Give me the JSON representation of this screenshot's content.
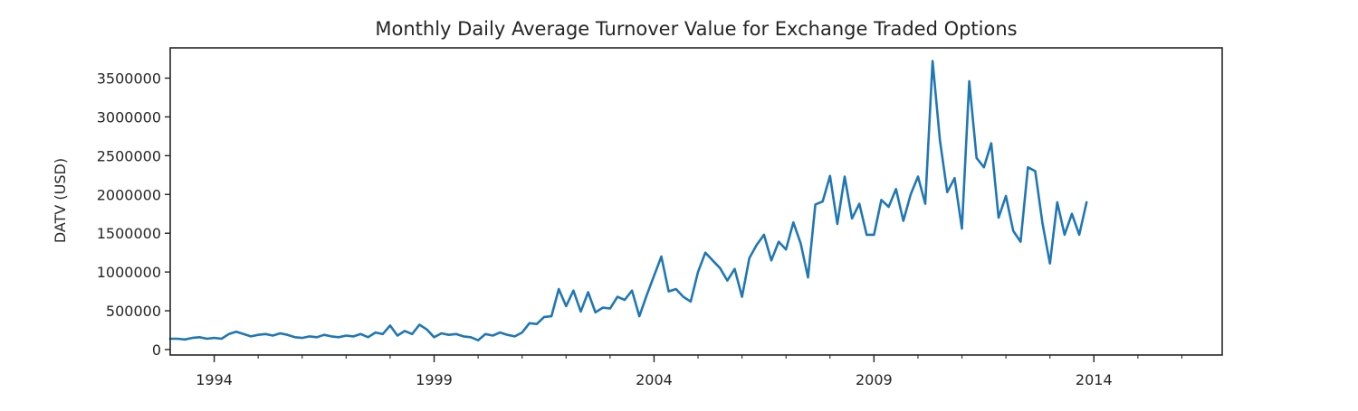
{
  "chart_data": {
    "type": "line",
    "title": "Monthly Daily Average Turnover Value for Exchange Traded Options",
    "xlabel": "",
    "ylabel": "DATV (USD)",
    "x_start": "1993-01",
    "x_end": "2016-12",
    "xlim": [
      "1993-01",
      "2016-12"
    ],
    "ylim": [
      -70000,
      3890000
    ],
    "y_ticks": [
      0,
      500000,
      1000000,
      1500000,
      2000000,
      2500000,
      3000000,
      3500000
    ],
    "y_tick_labels": [
      "0",
      "500000",
      "1000000",
      "1500000",
      "2000000",
      "2500000",
      "3000000",
      "3500000"
    ],
    "x_ticks": [
      "1994",
      "1999",
      "2004",
      "2009",
      "2014"
    ],
    "x_tick_labels": [
      "1994",
      "1999",
      "2004",
      "2009",
      "2014"
    ],
    "grid": false,
    "legend": "none",
    "series": [
      {
        "color": "#1f77b4",
        "points": [
          [
            "1993-01",
            140000
          ],
          [
            "1993-03",
            140000
          ],
          [
            "1993-05",
            130000
          ],
          [
            "1993-07",
            150000
          ],
          [
            "1993-09",
            160000
          ],
          [
            "1993-11",
            140000
          ],
          [
            "1994-01",
            150000
          ],
          [
            "1994-03",
            140000
          ],
          [
            "1994-05",
            200000
          ],
          [
            "1994-07",
            230000
          ],
          [
            "1994-09",
            200000
          ],
          [
            "1994-11",
            170000
          ],
          [
            "1995-01",
            190000
          ],
          [
            "1995-03",
            200000
          ],
          [
            "1995-05",
            180000
          ],
          [
            "1995-07",
            210000
          ],
          [
            "1995-09",
            190000
          ],
          [
            "1995-11",
            160000
          ],
          [
            "1996-01",
            150000
          ],
          [
            "1996-03",
            170000
          ],
          [
            "1996-05",
            160000
          ],
          [
            "1996-07",
            190000
          ],
          [
            "1996-09",
            170000
          ],
          [
            "1996-11",
            160000
          ],
          [
            "1997-01",
            180000
          ],
          [
            "1997-03",
            170000
          ],
          [
            "1997-05",
            200000
          ],
          [
            "1997-07",
            160000
          ],
          [
            "1997-09",
            220000
          ],
          [
            "1997-11",
            200000
          ],
          [
            "1998-01",
            310000
          ],
          [
            "1998-03",
            180000
          ],
          [
            "1998-05",
            240000
          ],
          [
            "1998-07",
            200000
          ],
          [
            "1998-09",
            320000
          ],
          [
            "1998-11",
            260000
          ],
          [
            "1999-01",
            160000
          ],
          [
            "1999-03",
            210000
          ],
          [
            "1999-05",
            190000
          ],
          [
            "1999-07",
            200000
          ],
          [
            "1999-09",
            170000
          ],
          [
            "1999-11",
            160000
          ],
          [
            "2000-01",
            120000
          ],
          [
            "2000-03",
            200000
          ],
          [
            "2000-05",
            180000
          ],
          [
            "2000-07",
            220000
          ],
          [
            "2000-09",
            190000
          ],
          [
            "2000-11",
            170000
          ],
          [
            "2001-01",
            220000
          ],
          [
            "2001-03",
            340000
          ],
          [
            "2001-05",
            330000
          ],
          [
            "2001-07",
            420000
          ],
          [
            "2001-09",
            430000
          ],
          [
            "2001-11",
            780000
          ],
          [
            "2002-01",
            560000
          ],
          [
            "2002-03",
            760000
          ],
          [
            "2002-05",
            490000
          ],
          [
            "2002-07",
            740000
          ],
          [
            "2002-09",
            480000
          ],
          [
            "2002-11",
            540000
          ],
          [
            "2003-01",
            530000
          ],
          [
            "2003-03",
            680000
          ],
          [
            "2003-05",
            640000
          ],
          [
            "2003-07",
            760000
          ],
          [
            "2003-09",
            430000
          ],
          [
            "2003-11",
            700000
          ],
          [
            "2004-01",
            950000
          ],
          [
            "2004-03",
            1200000
          ],
          [
            "2004-05",
            750000
          ],
          [
            "2004-07",
            780000
          ],
          [
            "2004-09",
            680000
          ],
          [
            "2004-11",
            620000
          ],
          [
            "2005-01",
            1000000
          ],
          [
            "2005-03",
            1250000
          ],
          [
            "2005-05",
            1150000
          ],
          [
            "2005-07",
            1050000
          ],
          [
            "2005-09",
            890000
          ],
          [
            "2005-11",
            1040000
          ],
          [
            "2006-01",
            680000
          ],
          [
            "2006-03",
            1180000
          ],
          [
            "2006-05",
            1350000
          ],
          [
            "2006-07",
            1480000
          ],
          [
            "2006-09",
            1150000
          ],
          [
            "2006-11",
            1390000
          ],
          [
            "2007-01",
            1290000
          ],
          [
            "2007-03",
            1640000
          ],
          [
            "2007-05",
            1370000
          ],
          [
            "2007-07",
            930000
          ],
          [
            "2007-09",
            1870000
          ],
          [
            "2007-11",
            1910000
          ],
          [
            "2008-01",
            2240000
          ],
          [
            "2008-03",
            1620000
          ],
          [
            "2008-05",
            2230000
          ],
          [
            "2008-07",
            1690000
          ],
          [
            "2008-09",
            1880000
          ],
          [
            "2008-11",
            1480000
          ],
          [
            "2009-01",
            1480000
          ],
          [
            "2009-03",
            1930000
          ],
          [
            "2009-05",
            1840000
          ],
          [
            "2009-07",
            2070000
          ],
          [
            "2009-09",
            1660000
          ],
          [
            "2009-11",
            2000000
          ],
          [
            "2010-01",
            2230000
          ],
          [
            "2010-03",
            1880000
          ],
          [
            "2010-05",
            3720000
          ],
          [
            "2010-07",
            2700000
          ],
          [
            "2010-09",
            2030000
          ],
          [
            "2010-11",
            2210000
          ],
          [
            "2011-01",
            1560000
          ],
          [
            "2011-03",
            3460000
          ],
          [
            "2011-05",
            2470000
          ],
          [
            "2011-07",
            2350000
          ],
          [
            "2011-09",
            2660000
          ],
          [
            "2011-11",
            1700000
          ],
          [
            "2012-01",
            1980000
          ],
          [
            "2012-03",
            1530000
          ],
          [
            "2012-05",
            1390000
          ],
          [
            "2012-07",
            2350000
          ],
          [
            "2012-09",
            2300000
          ],
          [
            "2012-11",
            1620000
          ],
          [
            "2013-01",
            1110000
          ],
          [
            "2013-03",
            1900000
          ],
          [
            "2013-05",
            1480000
          ],
          [
            "2013-07",
            1750000
          ],
          [
            "2013-09",
            1480000
          ],
          [
            "2013-11",
            1900000
          ]
        ]
      }
    ]
  }
}
